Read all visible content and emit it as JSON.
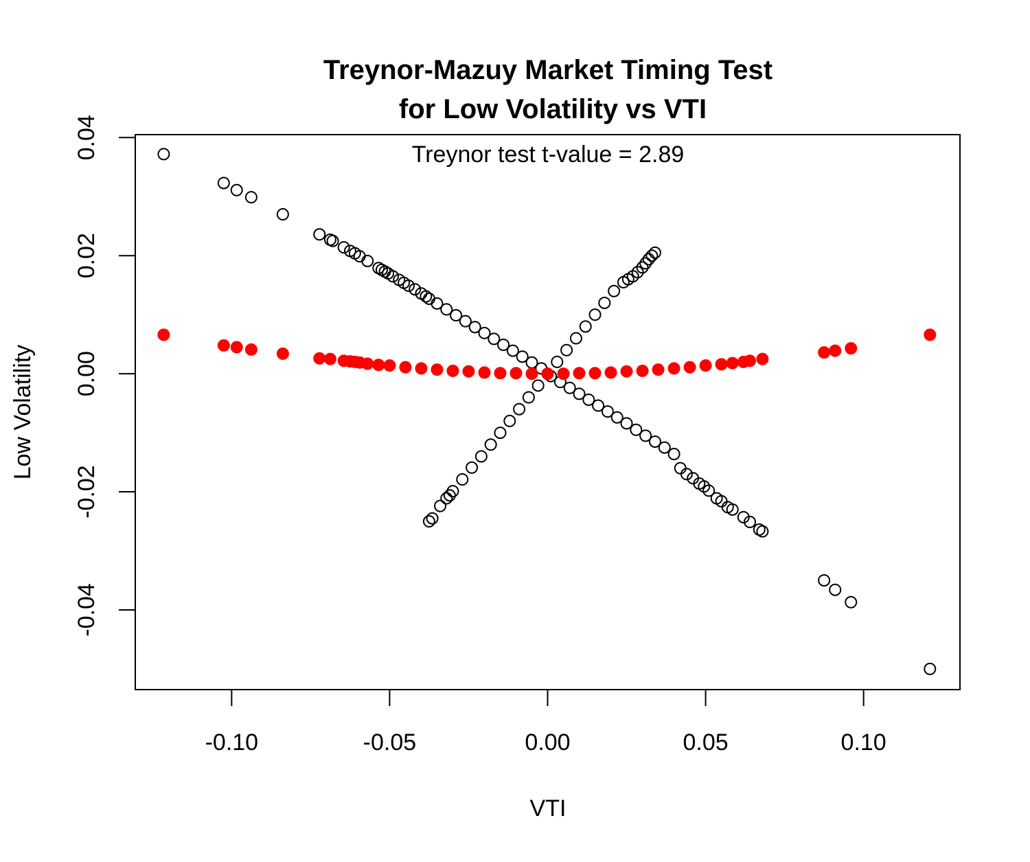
{
  "chart_data": {
    "type": "scatter",
    "title": [
      "Treynor-Mazuy Market Timing Test",
      "for Low Volatility vs VTI"
    ],
    "annotation": "Treynor test t-value = 2.89",
    "xlabel": "VTI",
    "ylabel": "Low Volatility",
    "xlim": [
      -0.1305,
      0.1305
    ],
    "ylim": [
      -0.0535,
      0.0405
    ],
    "x_ticks": [
      -0.1,
      -0.05,
      0.0,
      0.05,
      0.1
    ],
    "x_tick_labels": [
      "-0.10",
      "-0.05",
      "0.00",
      "0.05",
      "0.10"
    ],
    "y_ticks": [
      -0.04,
      -0.02,
      0.0,
      0.02,
      0.04
    ],
    "y_tick_labels": [
      "-0.04",
      "-0.02",
      "0.00",
      "0.02",
      "0.04"
    ],
    "grid": false,
    "legend": "none",
    "series": [
      {
        "marker": "open-circle",
        "color": "#000000",
        "points": [
          [
            -0.1215,
            0.0372
          ],
          [
            -0.1025,
            0.0323
          ],
          [
            -0.0984,
            0.0311
          ],
          [
            -0.0938,
            0.0299
          ],
          [
            -0.0838,
            0.027
          ],
          [
            -0.0722,
            0.0236
          ],
          [
            -0.0688,
            0.0227
          ],
          [
            -0.068,
            0.0225
          ],
          [
            -0.0645,
            0.0214
          ],
          [
            -0.0625,
            0.0208
          ],
          [
            -0.061,
            0.0204
          ],
          [
            -0.0595,
            0.0199
          ],
          [
            -0.057,
            0.0191
          ],
          [
            -0.0535,
            0.0179
          ],
          [
            -0.0525,
            0.0176
          ],
          [
            -0.0515,
            0.0173
          ],
          [
            -0.0505,
            0.017
          ],
          [
            -0.049,
            0.0165
          ],
          [
            -0.047,
            0.0159
          ],
          [
            -0.0455,
            0.0154
          ],
          [
            -0.044,
            0.0149
          ],
          [
            -0.042,
            0.0143
          ],
          [
            -0.04,
            0.0136
          ],
          [
            -0.0385,
            0.0131
          ],
          [
            -0.0375,
            0.0127
          ],
          [
            -0.035,
            0.0119
          ],
          [
            -0.032,
            0.0109
          ],
          [
            -0.029,
            0.0099
          ],
          [
            -0.026,
            0.0089
          ],
          [
            -0.023,
            0.0079
          ],
          [
            -0.02,
            0.0069
          ],
          [
            -0.017,
            0.0059
          ],
          [
            -0.014,
            0.0049
          ],
          [
            -0.011,
            0.0039
          ],
          [
            -0.008,
            0.0029
          ],
          [
            -0.005,
            0.0019
          ],
          [
            -0.002,
            0.0009
          ],
          [
            0.001,
            -0.0004
          ],
          [
            0.004,
            -0.0014
          ],
          [
            0.007,
            -0.0024
          ],
          [
            0.01,
            -0.0034
          ],
          [
            0.013,
            -0.0044
          ],
          [
            0.016,
            -0.0054
          ],
          [
            0.019,
            -0.0064
          ],
          [
            0.022,
            -0.0074
          ],
          [
            0.025,
            -0.0084
          ],
          [
            0.028,
            -0.0095
          ],
          [
            0.031,
            -0.0105
          ],
          [
            0.034,
            -0.0115
          ],
          [
            0.037,
            -0.0125
          ],
          [
            0.04,
            -0.0136
          ],
          [
            0.042,
            -0.016
          ],
          [
            0.044,
            -0.017
          ],
          [
            0.046,
            -0.0177
          ],
          [
            0.048,
            -0.0186
          ],
          [
            0.0495,
            -0.0191
          ],
          [
            0.051,
            -0.0198
          ],
          [
            0.0535,
            -0.0211
          ],
          [
            0.055,
            -0.0216
          ],
          [
            0.057,
            -0.0226
          ],
          [
            0.0585,
            -0.023
          ],
          [
            0.062,
            -0.0243
          ],
          [
            0.064,
            -0.0251
          ],
          [
            0.067,
            -0.0264
          ],
          [
            0.068,
            -0.0267
          ],
          [
            0.0875,
            -0.035
          ],
          [
            0.091,
            -0.0366
          ],
          [
            0.096,
            -0.0387
          ],
          [
            0.121,
            -0.05
          ],
          [
            -0.0375,
            -0.025
          ],
          [
            -0.0365,
            -0.0245
          ],
          [
            -0.034,
            -0.0224
          ],
          [
            -0.032,
            -0.0211
          ],
          [
            -0.031,
            -0.0206
          ],
          [
            -0.03,
            -0.0199
          ],
          [
            -0.027,
            -0.0179
          ],
          [
            -0.024,
            -0.0159
          ],
          [
            -0.021,
            -0.014
          ],
          [
            -0.018,
            -0.012
          ],
          [
            -0.015,
            -0.01
          ],
          [
            -0.012,
            -0.008
          ],
          [
            -0.009,
            -0.006
          ],
          [
            -0.006,
            -0.004
          ],
          [
            -0.003,
            -0.002
          ],
          [
            0.0,
            0.0
          ],
          [
            0.003,
            0.002
          ],
          [
            0.006,
            0.004
          ],
          [
            0.009,
            0.006
          ],
          [
            0.012,
            0.008
          ],
          [
            0.015,
            0.01
          ],
          [
            0.018,
            0.012
          ],
          [
            0.021,
            0.014
          ],
          [
            0.024,
            0.0155
          ],
          [
            0.0255,
            0.016
          ],
          [
            0.027,
            0.0165
          ],
          [
            0.0285,
            0.0172
          ],
          [
            0.03,
            0.018
          ],
          [
            0.031,
            0.0187
          ],
          [
            0.032,
            0.0194
          ],
          [
            0.033,
            0.02
          ],
          [
            0.034,
            0.0205
          ]
        ]
      },
      {
        "marker": "filled-circle",
        "color": "#ff0000",
        "points": [
          [
            -0.1215,
            0.0066
          ],
          [
            -0.1025,
            0.0048
          ],
          [
            -0.0984,
            0.0045
          ],
          [
            -0.0938,
            0.0041
          ],
          [
            -0.0838,
            0.0034
          ],
          [
            -0.0722,
            0.0026
          ],
          [
            -0.0688,
            0.0025
          ],
          [
            -0.0645,
            0.0022
          ],
          [
            -0.0625,
            0.0021
          ],
          [
            -0.061,
            0.002
          ],
          [
            -0.0595,
            0.0019
          ],
          [
            -0.057,
            0.0017
          ],
          [
            -0.0535,
            0.0015
          ],
          [
            -0.05,
            0.0014
          ],
          [
            -0.045,
            0.0011
          ],
          [
            -0.04,
            0.0009
          ],
          [
            -0.035,
            0.0007
          ],
          [
            -0.03,
            0.0005
          ],
          [
            -0.025,
            0.0004
          ],
          [
            -0.02,
            0.0002
          ],
          [
            -0.015,
            0.0001
          ],
          [
            -0.01,
            0.0001
          ],
          [
            -0.005,
            0.0
          ],
          [
            0.0,
            0.0
          ],
          [
            0.005,
            0.0
          ],
          [
            0.01,
            0.0001
          ],
          [
            0.015,
            0.0001
          ],
          [
            0.02,
            0.0002
          ],
          [
            0.025,
            0.0004
          ],
          [
            0.03,
            0.0005
          ],
          [
            0.035,
            0.0007
          ],
          [
            0.04,
            0.0009
          ],
          [
            0.045,
            0.0011
          ],
          [
            0.05,
            0.0014
          ],
          [
            0.055,
            0.0016
          ],
          [
            0.0585,
            0.0018
          ],
          [
            0.062,
            0.002
          ],
          [
            0.064,
            0.0022
          ],
          [
            0.068,
            0.0025
          ],
          [
            0.0875,
            0.0036
          ],
          [
            0.091,
            0.0039
          ],
          [
            0.096,
            0.0043
          ],
          [
            0.121,
            0.0066
          ]
        ]
      }
    ]
  }
}
